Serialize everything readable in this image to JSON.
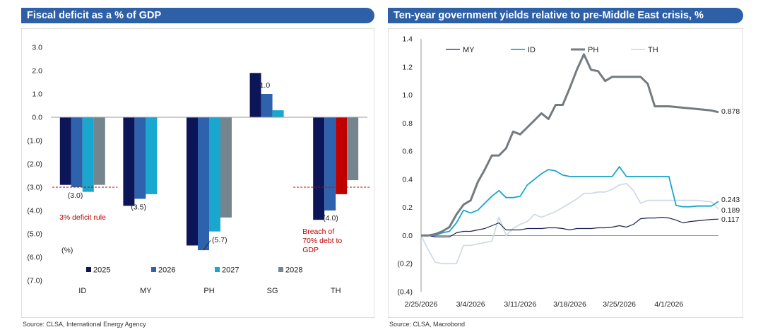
{
  "left_panel": {
    "title": "Fiscal deficit as a % of GDP",
    "source": "Source: CLSA, International Energy Agency"
  },
  "right_panel": {
    "title": "Ten-year government yields relative to pre-Middle East crisis, %",
    "source": "Source: CLSA, Macrobond"
  },
  "chart_data": [
    {
      "type": "bar",
      "title": "Fiscal deficit as a % of GDP",
      "categories": [
        "ID",
        "MY",
        "PH",
        "SG",
        "TH"
      ],
      "series": [
        {
          "name": "2025",
          "color": "#0c1558",
          "values": [
            -2.9,
            -3.8,
            -5.5,
            1.9,
            -4.4
          ]
        },
        {
          "name": "2026",
          "color": "#2f62ad",
          "values": [
            -3.0,
            -3.5,
            -5.7,
            1.0,
            -4.0
          ]
        },
        {
          "name": "2027",
          "color": "#19a7cf",
          "values": [
            -3.2,
            -3.3,
            -4.9,
            0.3,
            -3.3
          ]
        },
        {
          "name": "2028",
          "color": "#75858d",
          "values": [
            -2.9,
            null,
            -4.3,
            null,
            -2.7
          ]
        }
      ],
      "highlight": {
        "category": "TH",
        "series": "2027",
        "color": "#c00000"
      },
      "ylim": [
        -7.0,
        3.0
      ],
      "yticks": [
        "3.0",
        "2.0",
        "1.0",
        "0.0",
        "(1.0)",
        "(2.0)",
        "(3.0)",
        "(4.0)",
        "(5.0)",
        "(6.0)",
        "(7.0)"
      ],
      "ytick_values": [
        3,
        2,
        1,
        0,
        -1,
        -2,
        -3,
        -4,
        -5,
        -6,
        -7
      ],
      "unit_label": "(%)",
      "legend_position": "bottom",
      "data_labels": [
        {
          "text": "(3.0)",
          "value": -3.0,
          "category": "ID"
        },
        {
          "text": "(3.5)",
          "value": -3.5,
          "category": "MY"
        },
        {
          "text": "(5.7)",
          "value": -5.7,
          "category": "PH"
        },
        {
          "text": "1.0",
          "value": 1.0,
          "category": "SG"
        },
        {
          "text": "(4.0)",
          "value": -4.0,
          "category": "TH"
        }
      ],
      "reference_lines": [
        {
          "value": -3.0,
          "color": "#c00000",
          "style": "dashed",
          "label": "3% deficit rule",
          "label_color": "#c00000"
        },
        {
          "value": -3.0,
          "color": "#c00000",
          "style": "dashed",
          "label": "Breach of 70% debt to GDP",
          "label_lines": [
            "Breach of",
            "70% debt to",
            "GDP"
          ],
          "label_color": "#c00000"
        }
      ]
    },
    {
      "type": "line",
      "title": "Ten-year government yields relative to pre-Middle East crisis, %",
      "x": [
        "2/25/2026",
        "2/26/2026",
        "2/27/2026",
        "2/28/2026",
        "3/1/2026",
        "3/2/2026",
        "3/3/2026",
        "3/4/2026",
        "3/5/2026",
        "3/6/2026",
        "3/7/2026",
        "3/8/2026",
        "3/9/2026",
        "3/10/2026",
        "3/11/2026",
        "3/12/2026",
        "3/13/2026",
        "3/14/2026",
        "3/15/2026",
        "3/16/2026",
        "3/17/2026",
        "3/18/2026",
        "3/19/2026",
        "3/20/2026",
        "3/21/2026",
        "3/22/2026",
        "3/23/2026",
        "3/24/2026",
        "3/25/2026",
        "3/26/2026",
        "3/27/2026",
        "3/28/2026",
        "3/29/2026",
        "3/30/2026",
        "3/31/2026",
        "4/1/2026",
        "4/2/2026",
        "4/3/2026",
        "4/4/2026",
        "4/5/2026",
        "4/6/2026",
        "4/7/2026",
        "4/8/2026"
      ],
      "xticks": [
        "2/25/2026",
        "3/4/2026",
        "3/11/2026",
        "3/18/2026",
        "3/25/2026",
        "4/1/2026"
      ],
      "series": [
        {
          "name": "MY",
          "color": "#1c2350",
          "width": 1.2,
          "values": [
            0.0,
            0.0,
            -0.01,
            -0.01,
            -0.01,
            0.02,
            0.03,
            0.03,
            0.04,
            0.05,
            0.07,
            0.09,
            0.04,
            0.04,
            0.04,
            0.05,
            0.05,
            0.05,
            0.055,
            0.055,
            0.05,
            0.04,
            0.05,
            0.05,
            0.05,
            0.055,
            0.055,
            0.06,
            0.07,
            0.06,
            0.08,
            0.12,
            0.125,
            0.125,
            0.13,
            0.125,
            0.11,
            0.09,
            0.1,
            0.105,
            0.11,
            0.115,
            0.117
          ]
        },
        {
          "name": "ID",
          "color": "#19a7c8",
          "width": 1.8,
          "values": [
            0.0,
            0.0,
            0.0,
            0.02,
            0.03,
            0.09,
            0.18,
            0.16,
            0.18,
            0.23,
            0.28,
            0.32,
            0.27,
            0.27,
            0.28,
            0.36,
            0.4,
            0.44,
            0.47,
            0.46,
            0.43,
            0.42,
            0.42,
            0.42,
            0.42,
            0.42,
            0.42,
            0.42,
            0.49,
            0.42,
            0.42,
            0.42,
            0.42,
            0.42,
            0.42,
            0.42,
            0.215,
            0.205,
            0.205,
            0.21,
            0.21,
            0.21,
            0.243
          ]
        },
        {
          "name": "PH",
          "color": "#737b80",
          "width": 3.0,
          "values": [
            0.0,
            0.0,
            0.01,
            0.03,
            0.06,
            0.15,
            0.22,
            0.25,
            0.38,
            0.47,
            0.57,
            0.57,
            0.62,
            0.74,
            0.72,
            0.77,
            0.82,
            0.87,
            0.83,
            0.93,
            0.93,
            1.05,
            1.18,
            1.29,
            1.18,
            1.17,
            1.1,
            1.13,
            1.13,
            1.13,
            1.13,
            1.13,
            1.08,
            0.92,
            0.92,
            0.92,
            0.915,
            0.91,
            0.905,
            0.9,
            0.895,
            0.89,
            0.878
          ]
        },
        {
          "name": "TH",
          "color": "#d0dbe8",
          "width": 1.8,
          "values": [
            0.0,
            -0.1,
            -0.19,
            -0.2,
            -0.2,
            -0.2,
            -0.07,
            -0.07,
            -0.06,
            -0.05,
            -0.04,
            0.13,
            0.0,
            0.05,
            0.08,
            0.1,
            0.15,
            0.13,
            0.15,
            0.17,
            0.2,
            0.23,
            0.26,
            0.3,
            0.3,
            0.31,
            0.31,
            0.33,
            0.36,
            0.37,
            0.32,
            0.23,
            0.25,
            0.25,
            0.25,
            0.25,
            0.25,
            0.25,
            0.25,
            0.25,
            0.245,
            0.24,
            0.189
          ]
        }
      ],
      "end_labels": [
        {
          "series": "PH",
          "text": "0.878",
          "value": 0.878
        },
        {
          "series": "ID",
          "text": "0.243",
          "value": 0.243
        },
        {
          "series": "TH",
          "text": "0.189",
          "value": 0.189
        },
        {
          "series": "MY",
          "text": "0.117",
          "value": 0.117
        }
      ],
      "ylim": [
        -0.4,
        1.4
      ],
      "yticks": [
        "1.4",
        "1.2",
        "1.0",
        "0.8",
        "0.6",
        "0.4",
        "0.2",
        "0.0",
        "(0.2)",
        "(0.4)"
      ],
      "ytick_values": [
        1.4,
        1.2,
        1.0,
        0.8,
        0.6,
        0.4,
        0.2,
        0.0,
        -0.2,
        -0.4
      ],
      "legend_position": "top"
    }
  ]
}
